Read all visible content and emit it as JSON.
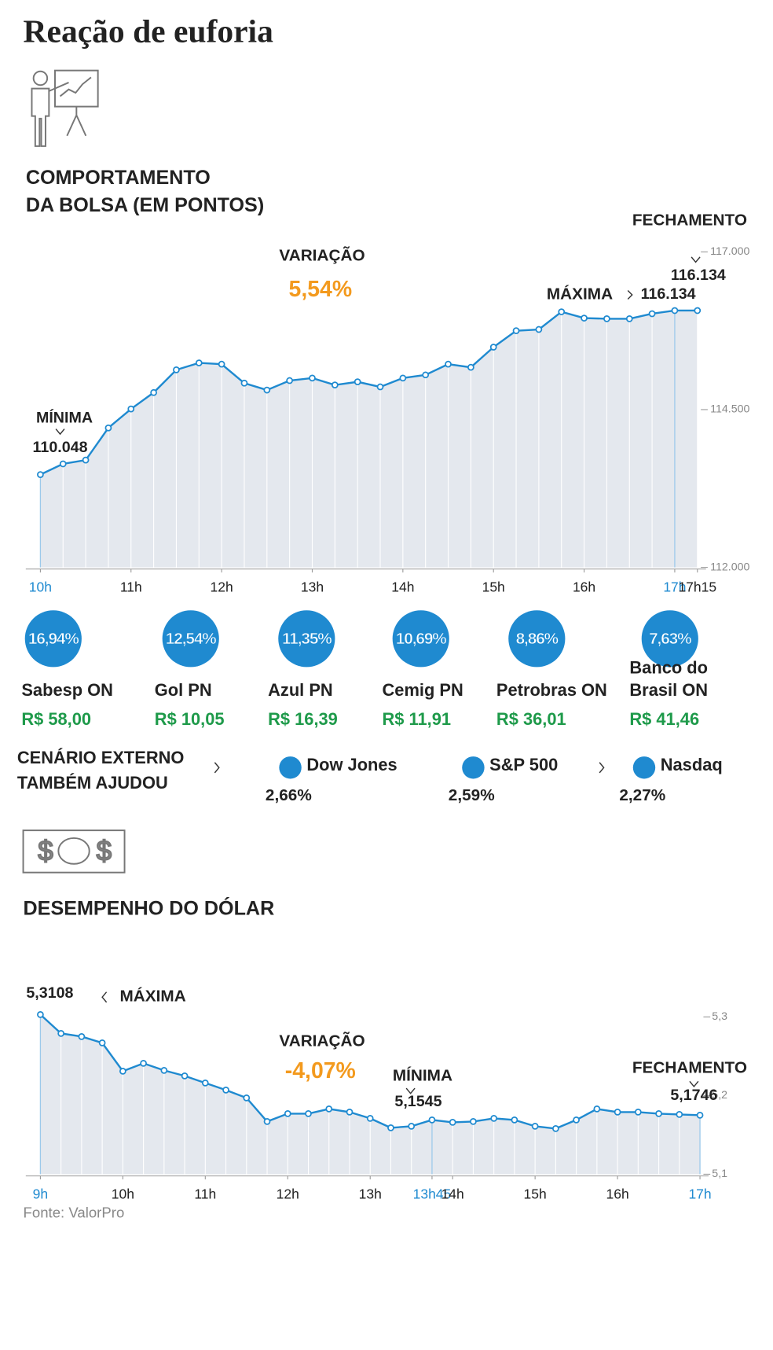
{
  "header": {
    "title": "Reação de euforia"
  },
  "chart_data": [
    {
      "type": "line",
      "title": [
        "COMPORTAMENTO",
        "DA BOLSA (EM PONTOS)"
      ],
      "x": [
        10,
        10.25,
        10.5,
        10.75,
        11,
        11.25,
        11.5,
        11.75,
        12,
        12.25,
        12.5,
        12.75,
        13,
        13.25,
        13.5,
        13.75,
        14,
        14.25,
        14.5,
        14.75,
        15,
        15.25,
        15.5,
        15.75,
        16,
        16.25,
        16.5,
        16.75,
        17,
        17.25
      ],
      "series": [
        {
          "color": "#1f8ad0",
          "values": [
            113470,
            113640,
            113700,
            114210,
            114510,
            114770,
            115130,
            115240,
            115220,
            114920,
            114810,
            114960,
            115000,
            114890,
            114940,
            114860,
            115000,
            115050,
            115220,
            115170,
            115490,
            115750,
            115770,
            116050,
            115950,
            115940,
            115940,
            116020,
            116070,
            116070
          ]
        }
      ],
      "xlim": [
        10,
        17.25
      ],
      "xticks": [
        {
          "value": 10,
          "label": "10h",
          "color": "#1f8ad0"
        },
        {
          "value": 11,
          "label": "11h"
        },
        {
          "value": 12,
          "label": "12h"
        },
        {
          "value": 13,
          "label": "13h"
        },
        {
          "value": 14,
          "label": "14h"
        },
        {
          "value": 15,
          "label": "15h"
        },
        {
          "value": 16,
          "label": "16h"
        },
        {
          "value": 17,
          "label": "17h",
          "color": "#1f8ad0"
        },
        {
          "value": 17.25,
          "label": "17h15"
        }
      ],
      "ylim": [
        112000,
        117000
      ],
      "yticks": [
        {
          "value": 112000,
          "label": "112.000"
        },
        {
          "value": 114500,
          "label": "114.500"
        },
        {
          "value": 117000,
          "label": "117.000"
        }
      ],
      "annotations": [
        "MÍNIMA",
        "110.048",
        "VARIAÇÃO",
        "5,54%",
        "MÁXIMA",
        "116.134",
        "FECHAMENTO",
        "116.134"
      ]
    },
    {
      "type": "line",
      "title": [
        "DESEMPENHO DO DÓLAR"
      ],
      "x": [
        9,
        9.25,
        9.5,
        9.75,
        10,
        10.25,
        10.5,
        10.75,
        11,
        11.25,
        11.5,
        11.75,
        12,
        12.25,
        12.5,
        12.75,
        13,
        13.25,
        13.5,
        13.75,
        14,
        14.25,
        14.5,
        14.75,
        15,
        15.25,
        15.5,
        15.75,
        16,
        16.25,
        16.5,
        16.75,
        17
      ],
      "series": [
        {
          "color": "#1f8ad0",
          "values": [
            5.303,
            5.279,
            5.275,
            5.267,
            5.231,
            5.241,
            5.232,
            5.225,
            5.216,
            5.207,
            5.197,
            5.167,
            5.177,
            5.177,
            5.183,
            5.179,
            5.171,
            5.159,
            5.161,
            5.169,
            5.166,
            5.167,
            5.171,
            5.169,
            5.161,
            5.158,
            5.169,
            5.183,
            5.179,
            5.179,
            5.177,
            5.176,
            5.175
          ]
        }
      ],
      "xlim": [
        9,
        17
      ],
      "xticks": [
        {
          "value": 9,
          "label": "9h",
          "color": "#1f8ad0"
        },
        {
          "value": 10,
          "label": "10h"
        },
        {
          "value": 11,
          "label": "11h"
        },
        {
          "value": 12,
          "label": "12h"
        },
        {
          "value": 13,
          "label": "13h"
        },
        {
          "value": 13.75,
          "label": "13h45",
          "color": "#1f8ad0"
        },
        {
          "value": 14,
          "label": "14h"
        },
        {
          "value": 15,
          "label": "15h"
        },
        {
          "value": 16,
          "label": "16h"
        },
        {
          "value": 17,
          "label": "17h",
          "color": "#1f8ad0"
        }
      ],
      "ylim": [
        5.1,
        5.3
      ],
      "yticks": [
        {
          "value": 5.1,
          "label": "5,1"
        },
        {
          "value": 5.2,
          "label": "5,2"
        },
        {
          "value": 5.3,
          "label": "5,3"
        }
      ],
      "annotations": [
        "5,3108",
        "MÁXIMA",
        "VARIAÇÃO",
        "-4,07%",
        "MÍNIMA",
        "5,1545",
        "FECHAMENTO",
        "5,1746"
      ]
    }
  ],
  "stocks": [
    {
      "change": "16,94%",
      "name": [
        "Sabesp ON"
      ],
      "price": "R$ 58,00"
    },
    {
      "change": "12,54%",
      "name": [
        "Gol PN"
      ],
      "price": "R$ 10,05"
    },
    {
      "change": "11,35%",
      "name": [
        "Azul PN"
      ],
      "price": "R$ 16,39"
    },
    {
      "change": "10,69%",
      "name": [
        "Cemig PN"
      ],
      "price": "R$ 11,91"
    },
    {
      "change": "8,86%",
      "name": [
        "Petrobras ON"
      ],
      "price": "R$ 36,01"
    },
    {
      "change": "7,63%",
      "name": [
        "Banco do",
        "Brasil ON"
      ],
      "price": "R$ 41,46"
    }
  ],
  "external": {
    "label": [
      "CENÁRIO EXTERNO",
      "TAMBÉM AJUDOU"
    ],
    "indices": [
      {
        "name": "Dow Jones",
        "change": "2,66%"
      },
      {
        "name": "S&P 500",
        "change": "2,59%"
      },
      {
        "name": "Nasdaq",
        "change": "2,27%"
      }
    ]
  },
  "source": "Fonte: ValorPro"
}
